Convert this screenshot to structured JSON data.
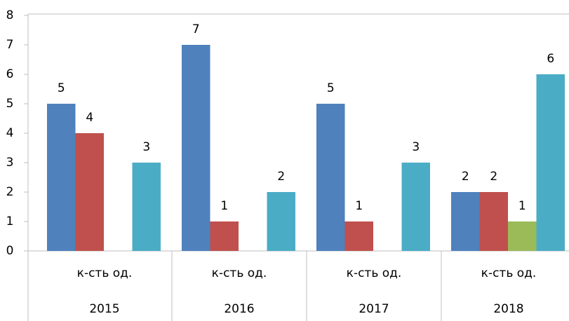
{
  "chart_data": {
    "type": "bar",
    "categories": [
      "2015",
      "2016",
      "2017",
      "2018"
    ],
    "subcategories": [
      "к-сть од.",
      "к-сть од.",
      "к-сть од.",
      "к-сть од."
    ],
    "series": [
      {
        "color": "#4f81bd",
        "values": [
          5,
          7,
          5,
          2
        ]
      },
      {
        "color": "#c0504d",
        "values": [
          4,
          1,
          1,
          2
        ]
      },
      {
        "color": "#9bbb59",
        "values": [
          null,
          null,
          null,
          1
        ]
      },
      {
        "color": "#4bacc6",
        "values": [
          3,
          2,
          3,
          6
        ]
      }
    ],
    "ylim": [
      0,
      8
    ],
    "yticks": [
      0,
      1,
      2,
      3,
      4,
      5,
      6,
      7,
      8
    ],
    "grid": false
  }
}
